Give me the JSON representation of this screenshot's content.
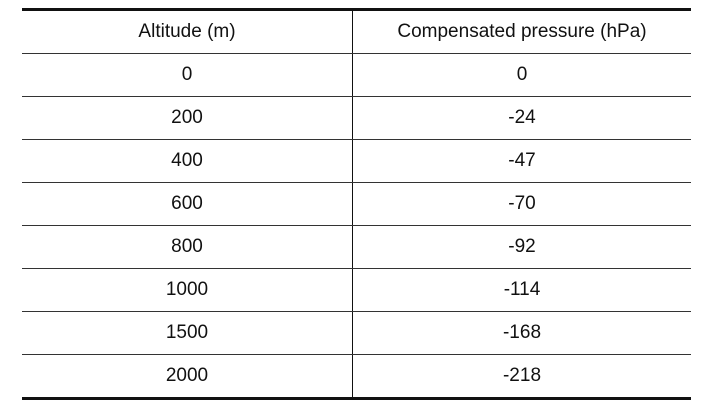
{
  "table": {
    "header": [
      "Altitude (m)",
      "Compensated pressure (hPa)"
    ],
    "rows": [
      [
        "0",
        "0"
      ],
      [
        "200",
        "-24"
      ],
      [
        "400",
        "-47"
      ],
      [
        "600",
        "-70"
      ],
      [
        "800",
        "-92"
      ],
      [
        "1000",
        "-114"
      ],
      [
        "1500",
        "-168"
      ],
      [
        "2000",
        "-218"
      ]
    ]
  }
}
